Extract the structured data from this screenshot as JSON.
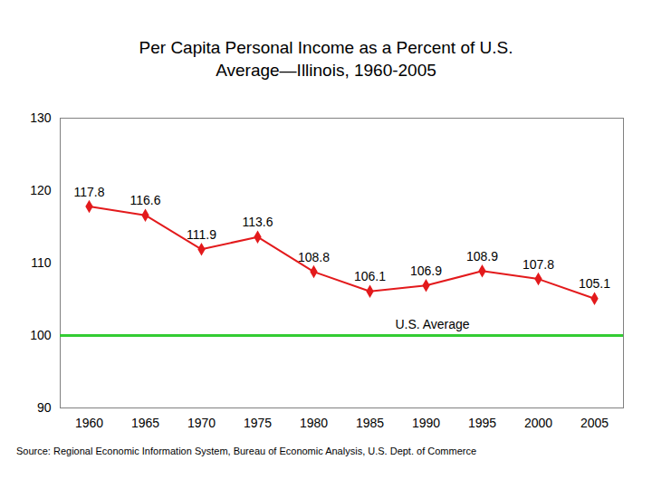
{
  "chart_data": {
    "type": "line",
    "title": "Per Capita Personal Income as a Percent of U.S. Average—Illinois, 1960-2005",
    "categories": [
      "1960",
      "1965",
      "1970",
      "1975",
      "1980",
      "1985",
      "1990",
      "1995",
      "2000",
      "2005"
    ],
    "values": [
      117.8,
      116.6,
      111.9,
      113.6,
      108.8,
      106.1,
      106.9,
      108.9,
      107.8,
      105.1
    ],
    "color": "#e31a1c",
    "marker": "diamond",
    "data_labels": true,
    "ylim": [
      90,
      130
    ],
    "yticks": [
      90,
      100,
      110,
      120,
      130
    ],
    "grid": false,
    "reference_line": {
      "y": 100,
      "label": "U.S. Average",
      "color": "#33cc33"
    },
    "caption": "Source:  Regional Economic Information System, Bureau of Economic Analysis, U.S. Dept. of Commerce"
  }
}
